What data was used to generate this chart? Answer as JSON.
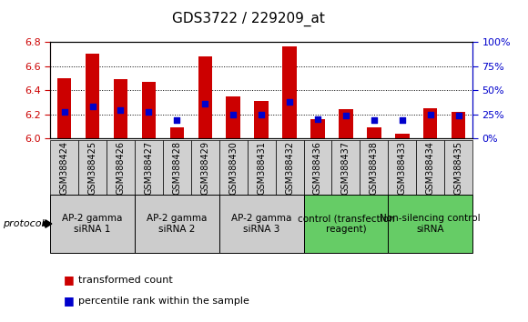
{
  "title": "GDS3722 / 229209_at",
  "samples": [
    "GSM388424",
    "GSM388425",
    "GSM388426",
    "GSM388427",
    "GSM388428",
    "GSM388429",
    "GSM388430",
    "GSM388431",
    "GSM388432",
    "GSM388436",
    "GSM388437",
    "GSM388438",
    "GSM388433",
    "GSM388434",
    "GSM388435"
  ],
  "transformed_count": [
    6.5,
    6.7,
    6.49,
    6.47,
    6.09,
    6.68,
    6.35,
    6.31,
    6.76,
    6.16,
    6.24,
    6.09,
    6.04,
    6.25,
    6.22
  ],
  "percentile_rank": [
    6.22,
    6.265,
    6.235,
    6.22,
    6.155,
    6.29,
    6.2,
    6.2,
    6.305,
    6.16,
    6.19,
    6.15,
    6.15,
    6.2,
    6.19
  ],
  "ylim": [
    6.0,
    6.8
  ],
  "ylim_right": [
    0,
    100
  ],
  "yticks_left": [
    6.0,
    6.2,
    6.4,
    6.6,
    6.8
  ],
  "yticks_right": [
    0,
    25,
    50,
    75,
    100
  ],
  "bar_color": "#cc0000",
  "dot_color": "#0000cc",
  "bar_bottom": 6.0,
  "groups": [
    {
      "label": "AP-2 gamma\nsiRNA 1",
      "indices": [
        0,
        1,
        2
      ],
      "color": "#cccccc"
    },
    {
      "label": "AP-2 gamma\nsiRNA 2",
      "indices": [
        3,
        4,
        5
      ],
      "color": "#cccccc"
    },
    {
      "label": "AP-2 gamma\nsiRNA 3",
      "indices": [
        6,
        7,
        8
      ],
      "color": "#cccccc"
    },
    {
      "label": "control (transfection\nreagent)",
      "indices": [
        9,
        10,
        11
      ],
      "color": "#66cc66"
    },
    {
      "label": "Non-silencing control\nsiRNA",
      "indices": [
        12,
        13,
        14
      ],
      "color": "#66cc66"
    }
  ],
  "protocol_label": "protocol",
  "legend_bar_label": "transformed count",
  "legend_dot_label": "percentile rank within the sample",
  "left_axis_color": "#cc0000",
  "right_axis_color": "#0000cc",
  "bar_width": 0.5,
  "dot_size": 18,
  "xlabel_fontsize": 7.0,
  "group_fontsize": 7.5,
  "title_fontsize": 11
}
